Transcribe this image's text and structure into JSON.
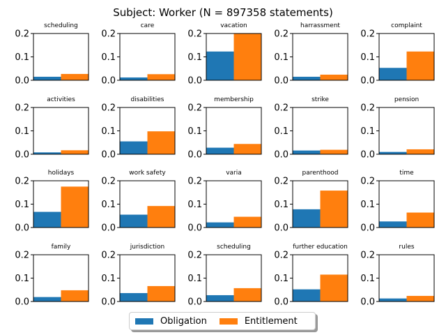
{
  "chart_data": {
    "type": "bar",
    "title": "Subject: Worker (N = 897358 statements)",
    "ylim": [
      0,
      0.2
    ],
    "yticks": [
      "0.0",
      "0.1",
      "0.2"
    ],
    "grid": false,
    "legend_position": "bottom-center",
    "series_names": [
      "Obligation",
      "Entitlement"
    ],
    "colors": {
      "Obligation": "#1f77b4",
      "Entitlement": "#ff7f0e"
    },
    "panels": [
      {
        "title": "scheduling",
        "values": [
          0.015,
          0.027
        ]
      },
      {
        "title": "care",
        "values": [
          0.012,
          0.026
        ]
      },
      {
        "title": "vacation",
        "values": [
          0.123,
          0.2
        ]
      },
      {
        "title": "harrassment",
        "values": [
          0.015,
          0.024
        ]
      },
      {
        "title": "complaint",
        "values": [
          0.053,
          0.123
        ]
      },
      {
        "title": "activities",
        "values": [
          0.008,
          0.017
        ]
      },
      {
        "title": "disabilities",
        "values": [
          0.055,
          0.098
        ]
      },
      {
        "title": "membership",
        "values": [
          0.028,
          0.044
        ]
      },
      {
        "title": "strike",
        "values": [
          0.016,
          0.019
        ]
      },
      {
        "title": "pension",
        "values": [
          0.01,
          0.021
        ]
      },
      {
        "title": "holidays",
        "values": [
          0.067,
          0.175
        ]
      },
      {
        "title": "work safety",
        "values": [
          0.055,
          0.092
        ]
      },
      {
        "title": "varia",
        "values": [
          0.022,
          0.046
        ]
      },
      {
        "title": "parenthood",
        "values": [
          0.078,
          0.158
        ]
      },
      {
        "title": "time",
        "values": [
          0.026,
          0.064
        ]
      },
      {
        "title": "family",
        "values": [
          0.019,
          0.048
        ]
      },
      {
        "title": "jurisdiction",
        "values": [
          0.036,
          0.066
        ]
      },
      {
        "title": "scheduling",
        "values": [
          0.027,
          0.057
        ]
      },
      {
        "title": "further education",
        "values": [
          0.052,
          0.115
        ]
      },
      {
        "title": "rules",
        "values": [
          0.013,
          0.024
        ]
      }
    ]
  }
}
